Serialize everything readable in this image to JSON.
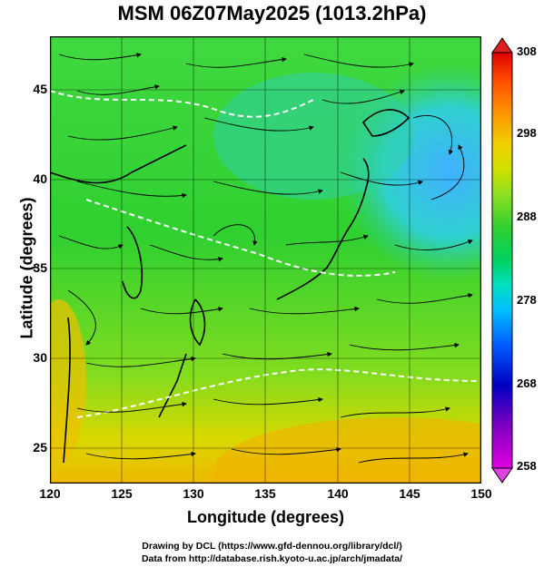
{
  "title": "MSM 06Z07May2025 (1013.2hPa)",
  "xlabel": "Longitude (degrees)",
  "ylabel": "Latitude  (degrees)",
  "x_ticks": [
    "120",
    "125",
    "130",
    "135",
    "140",
    "145",
    "150"
  ],
  "y_ticks": [
    "25",
    "30",
    "35",
    "40",
    "45"
  ],
  "colorbar": {
    "ticks": [
      "308",
      "298",
      "288",
      "278",
      "268",
      "258"
    ],
    "min": 258,
    "max": 308,
    "colors": [
      "#e000e0",
      "#8000c0",
      "#0000c0",
      "#0060ff",
      "#00c0ff",
      "#00e0c0",
      "#00d060",
      "#30d030",
      "#90e020",
      "#d0e000",
      "#f0d000",
      "#ff9000",
      "#ff5000",
      "#e00000"
    ]
  },
  "map_extent": {
    "lon_min": 120,
    "lon_max": 150,
    "lat_min": 23,
    "lat_max": 48
  },
  "credits": {
    "line1": "Drawing by DCL (https://www.gfd-dennou.org/library/dcl/)",
    "line2": "Data from http://database.rish.kyoto-u.ac.jp/arch/jmadata/"
  }
}
